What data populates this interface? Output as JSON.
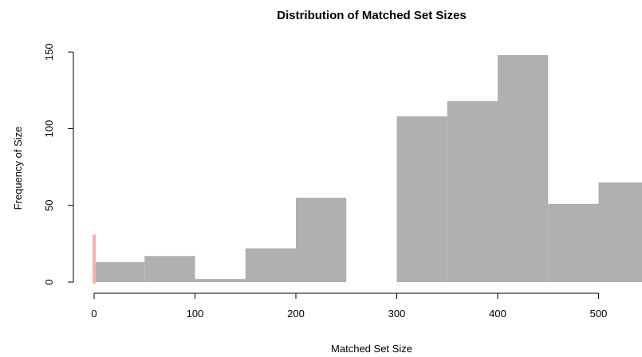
{
  "chart_data": {
    "type": "bar",
    "title": "Distribution of Matched Set Sizes",
    "xlabel": "Matched Set Size",
    "ylabel": "Frequency of Size",
    "xlim": [
      0,
      540
    ],
    "ylim": [
      0,
      150
    ],
    "x_ticks": [
      0,
      100,
      200,
      300,
      400,
      500
    ],
    "y_ticks": [
      0,
      50,
      100,
      150
    ],
    "grid": false,
    "bins": [
      {
        "start": 0,
        "end": 50,
        "count": 13
      },
      {
        "start": 50,
        "end": 100,
        "count": 17
      },
      {
        "start": 100,
        "end": 150,
        "count": 2
      },
      {
        "start": 150,
        "end": 200,
        "count": 22
      },
      {
        "start": 200,
        "end": 250,
        "count": 55
      },
      {
        "start": 250,
        "end": 300,
        "count": 0
      },
      {
        "start": 300,
        "end": 350,
        "count": 108
      },
      {
        "start": 350,
        "end": 400,
        "count": 118
      },
      {
        "start": 400,
        "end": 450,
        "count": 148
      },
      {
        "start": 450,
        "end": 500,
        "count": 51
      },
      {
        "start": 500,
        "end": 550,
        "count": 65
      }
    ],
    "marker_line": {
      "x": 0,
      "count": 31,
      "color": "#f6b2ad"
    },
    "bar_color": "#b0b0b0"
  }
}
